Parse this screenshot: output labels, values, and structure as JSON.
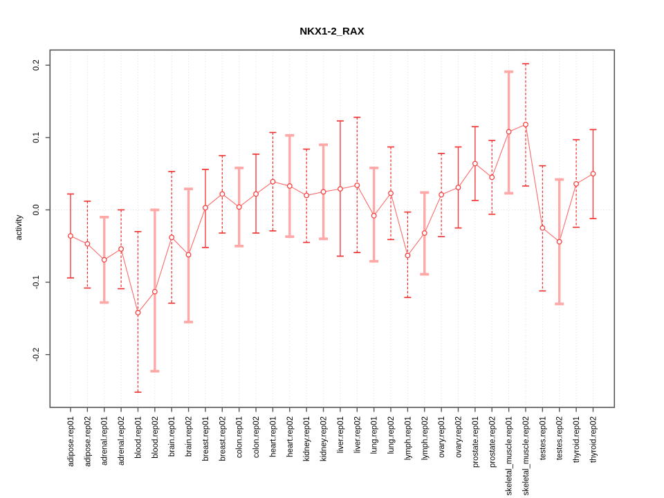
{
  "chart_data": {
    "type": "scatter",
    "title": "NKX1-2_RAX",
    "ylabel": "activity",
    "xlabel": "",
    "legend_position": "none",
    "grid": "vertical dotted gridline per category; dotted horizontal reference line at 0",
    "ylim": [
      -0.273,
      0.221
    ],
    "yticks": [
      0.2,
      0.1,
      0.0,
      -0.1,
      -0.2
    ],
    "ytick_labels": [
      "0.2",
      "0.1",
      "0.0",
      "-0.1",
      "-0.2"
    ],
    "categories": [
      "adipose.rep01",
      "adipose.rep02",
      "adrenal.rep01",
      "adrenal.rep02",
      "blood.rep01",
      "blood.rep02",
      "brain.rep01",
      "brain.rep02",
      "breast.rep01",
      "breast.rep02",
      "colon.rep01",
      "colon.rep02",
      "heart.rep01",
      "heart.rep02",
      "kidney.rep01",
      "kidney.rep02",
      "liver.rep01",
      "liver.rep02",
      "lung.rep01",
      "lung.rep02",
      "lymph.rep01",
      "lymph.rep02",
      "ovary.rep01",
      "ovary.rep02",
      "prostate.rep01",
      "prostate.rep02",
      "skeletal_muscle.rep01",
      "skeletal_muscle.rep02",
      "testes.rep01",
      "testes.rep02",
      "thyroid.rep01",
      "thyroid.rep02"
    ],
    "series": [
      {
        "name": "activity",
        "values": [
          -0.036,
          -0.047,
          -0.069,
          -0.054,
          -0.142,
          -0.113,
          -0.038,
          -0.062,
          0.003,
          0.022,
          0.004,
          0.022,
          0.039,
          0.033,
          0.02,
          0.025,
          0.029,
          0.034,
          -0.008,
          0.023,
          -0.063,
          -0.032,
          0.021,
          0.031,
          0.064,
          0.045,
          0.108,
          0.118,
          -0.025,
          -0.044,
          0.036,
          0.05
        ],
        "err_high": [
          0.022,
          0.012,
          -0.01,
          0.0,
          -0.03,
          0.0,
          0.053,
          0.029,
          0.056,
          0.075,
          0.058,
          0.077,
          0.107,
          0.103,
          0.084,
          0.09,
          0.123,
          0.128,
          0.058,
          0.087,
          -0.003,
          0.024,
          0.078,
          0.087,
          0.115,
          0.096,
          0.191,
          0.202,
          0.061,
          0.042,
          0.097,
          0.111
        ],
        "err_low": [
          -0.094,
          -0.108,
          -0.128,
          -0.109,
          -0.252,
          -0.223,
          -0.129,
          -0.155,
          -0.052,
          -0.032,
          -0.05,
          -0.032,
          -0.029,
          -0.037,
          -0.045,
          -0.04,
          -0.064,
          -0.059,
          -0.071,
          -0.041,
          -0.121,
          -0.089,
          -0.037,
          -0.025,
          0.013,
          -0.006,
          0.023,
          0.033,
          -0.112,
          -0.13,
          -0.024,
          -0.012
        ],
        "bar_styles": [
          "solid",
          "dashed",
          "thick",
          "dashed",
          "dashed",
          "thick",
          "dashed",
          "thick",
          "solid",
          "dashed",
          "thick",
          "solid",
          "dashed",
          "thick",
          "dashed",
          "thick",
          "solid",
          "dashed",
          "thick",
          "dashed",
          "dashed",
          "thick",
          "dashed",
          "solid",
          "solid",
          "dashed",
          "thick",
          "dashed",
          "dashed",
          "thick",
          "dashed",
          "solid"
        ]
      }
    ],
    "colors": {
      "bar_solid": "#f43b3b",
      "bar_dashed": "#ee2c2c",
      "bar_thick": "#ffa8a8",
      "connector": "#fb6a6a",
      "point_stroke": "#f94040",
      "point_fill": "#ffffff",
      "grid": "#dcdcdc",
      "zero_line": "#d9d9d9",
      "frame": "#545454",
      "text": "#000000"
    }
  }
}
